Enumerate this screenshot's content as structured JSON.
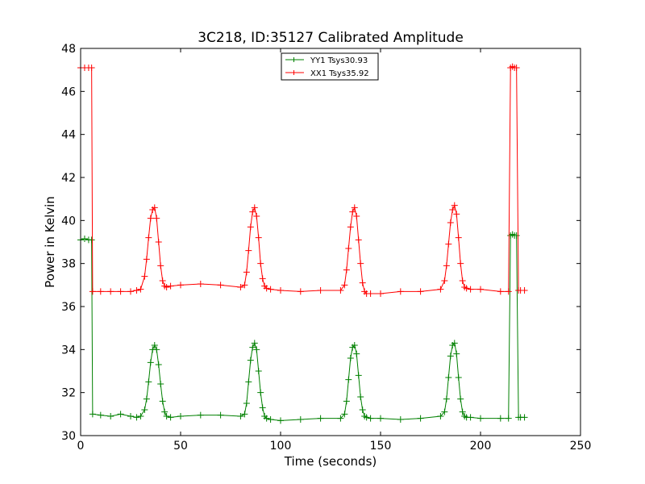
{
  "chart_data": {
    "type": "line",
    "title": "3C218, ID:35127 Calibrated Amplitude",
    "xlabel": "Time (seconds)",
    "ylabel": "Power in Kelvin",
    "xlim": [
      0,
      250
    ],
    "ylim": [
      30,
      48
    ],
    "xticks": [
      0,
      50,
      100,
      150,
      200,
      250
    ],
    "yticks": [
      30,
      32,
      34,
      36,
      38,
      40,
      42,
      44,
      46,
      48
    ],
    "grid": false,
    "legend_position": "top-center",
    "marker": "plus",
    "series": [
      {
        "name": "YY1 Tsys30.93",
        "color": "#008000",
        "x": [
          0,
          2,
          4,
          5.5,
          6,
          10,
          15,
          20,
          25,
          28,
          30,
          32,
          33,
          34,
          35,
          36,
          37,
          38,
          39,
          40,
          41,
          42,
          43,
          45,
          50,
          60,
          70,
          80,
          82,
          83,
          84,
          85,
          86,
          87,
          88,
          89,
          90,
          91,
          92,
          93,
          95,
          100,
          110,
          120,
          130,
          132,
          133,
          134,
          135,
          136,
          137,
          138,
          139,
          140,
          141,
          142,
          143,
          145,
          150,
          160,
          170,
          180,
          182,
          183,
          184,
          185,
          186,
          187,
          188,
          189,
          190,
          191,
          192,
          193,
          195,
          200,
          210,
          214,
          215,
          216,
          217,
          218,
          219,
          220,
          222
        ],
        "y": [
          39.1,
          39.15,
          39.1,
          39.1,
          31.0,
          30.95,
          30.9,
          31.0,
          30.9,
          30.85,
          30.9,
          31.2,
          31.7,
          32.5,
          33.4,
          34.0,
          34.2,
          34.0,
          33.3,
          32.4,
          31.6,
          31.1,
          30.9,
          30.85,
          30.9,
          30.95,
          30.95,
          30.9,
          31.0,
          31.5,
          32.5,
          33.5,
          34.1,
          34.3,
          34.0,
          33.0,
          32.0,
          31.3,
          30.9,
          30.8,
          30.75,
          30.7,
          30.75,
          30.8,
          30.8,
          31.0,
          31.6,
          32.6,
          33.6,
          34.1,
          34.2,
          33.8,
          32.8,
          31.8,
          31.2,
          30.9,
          30.85,
          30.8,
          30.8,
          30.75,
          30.8,
          30.9,
          31.1,
          31.7,
          32.7,
          33.7,
          34.2,
          34.3,
          33.8,
          32.7,
          31.7,
          31.1,
          30.9,
          30.85,
          30.85,
          30.8,
          30.8,
          30.8,
          39.3,
          39.35,
          39.3,
          39.3,
          30.85,
          30.85,
          30.85
        ]
      },
      {
        "name": "XX1 Tsys35.92",
        "color": "#ff0000",
        "x": [
          0,
          2,
          4,
          5.5,
          6,
          10,
          15,
          20,
          25,
          28,
          30,
          32,
          33,
          34,
          35,
          36,
          37,
          38,
          39,
          40,
          41,
          42,
          43,
          45,
          50,
          60,
          70,
          80,
          82,
          83,
          84,
          85,
          86,
          87,
          88,
          89,
          90,
          91,
          92,
          93,
          95,
          100,
          110,
          120,
          130,
          132,
          133,
          134,
          135,
          136,
          137,
          138,
          139,
          140,
          141,
          142,
          143,
          145,
          150,
          160,
          170,
          180,
          182,
          183,
          184,
          185,
          186,
          187,
          188,
          189,
          190,
          191,
          192,
          193,
          195,
          200,
          210,
          214,
          215,
          216,
          217,
          218,
          219,
          220,
          222
        ],
        "y": [
          47.1,
          47.1,
          47.1,
          47.1,
          36.7,
          36.7,
          36.7,
          36.7,
          36.7,
          36.75,
          36.8,
          37.4,
          38.2,
          39.2,
          40.1,
          40.5,
          40.6,
          40.1,
          39.0,
          37.9,
          37.2,
          36.95,
          36.9,
          36.95,
          37.0,
          37.05,
          37.0,
          36.9,
          37.0,
          37.6,
          38.6,
          39.7,
          40.4,
          40.6,
          40.2,
          39.2,
          38.0,
          37.3,
          36.95,
          36.85,
          36.8,
          36.75,
          36.7,
          36.75,
          36.75,
          37.0,
          37.7,
          38.7,
          39.7,
          40.4,
          40.6,
          40.2,
          39.1,
          38.0,
          37.1,
          36.7,
          36.6,
          36.6,
          36.6,
          36.7,
          36.7,
          36.8,
          37.2,
          37.9,
          38.9,
          39.9,
          40.5,
          40.7,
          40.3,
          39.2,
          38.0,
          37.2,
          36.9,
          36.85,
          36.8,
          36.8,
          36.7,
          36.7,
          47.1,
          47.15,
          47.1,
          47.1,
          36.75,
          36.75,
          36.75
        ]
      }
    ]
  }
}
